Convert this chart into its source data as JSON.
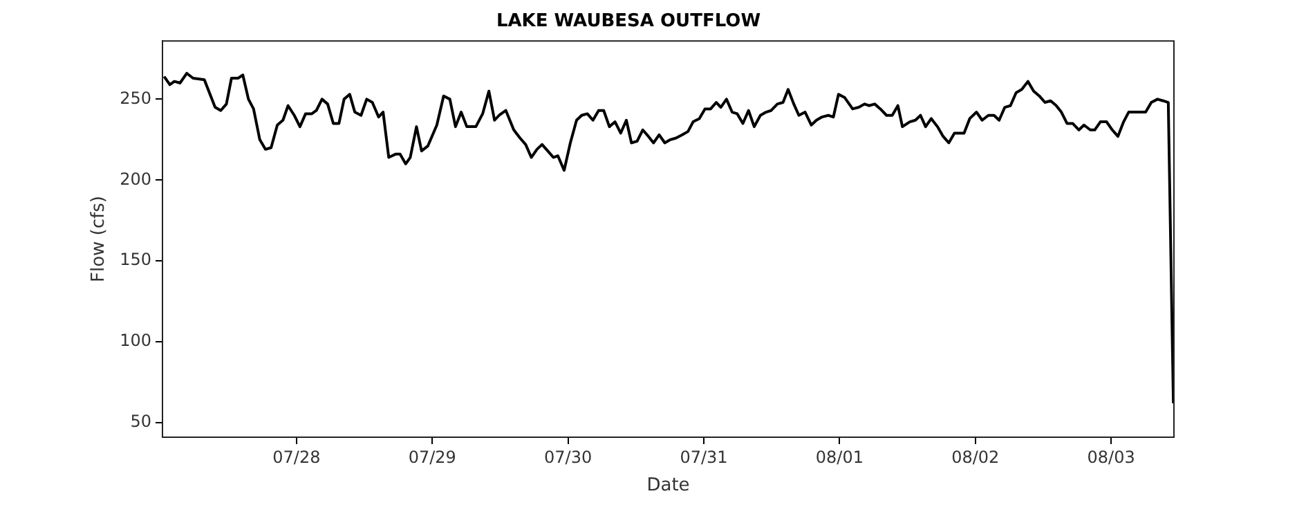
{
  "chart_data": {
    "type": "line",
    "title": "LAKE WAUBESA OUTFLOW",
    "xlabel": "Date",
    "ylabel": "Flow (cfs)",
    "xlim": [
      "--07-27T00:18",
      "--08-03T11:06"
    ],
    "xticks": [
      {
        "value": "--07-28",
        "label": "07/28"
      },
      {
        "value": "--07-29",
        "label": "07/29"
      },
      {
        "value": "--07-30",
        "label": "07/30"
      },
      {
        "value": "--07-31",
        "label": "07/31"
      },
      {
        "value": "--08-01",
        "label": "08/01"
      },
      {
        "value": "--08-02",
        "label": "08/02"
      },
      {
        "value": "--08-03",
        "label": "08/03"
      }
    ],
    "ylim": [
      41,
      286
    ],
    "yticks": [
      50,
      100,
      150,
      200,
      250
    ],
    "grid": false,
    "legend": false,
    "marker": "none",
    "line_style": "solid",
    "series": [
      {
        "color": "#000000",
        "x": [
          "--07-27T00:36",
          "--07-27T01:36",
          "--07-27T02:24",
          "--07-27T03:24",
          "--07-27T04:36",
          "--07-27T05:42",
          "--07-27T07:42",
          "--07-27T09:36",
          "--07-27T10:36",
          "--07-27T11:36",
          "--07-27T12:30",
          "--07-27T13:42",
          "--07-27T14:30",
          "--07-27T15:30",
          "--07-27T16:24",
          "--07-27T17:30",
          "--07-27T18:30",
          "--07-27T19:30",
          "--07-27T20:36",
          "--07-27T21:36",
          "--07-27T22:30",
          "--07-27T23:36",
          "--07-28T00:36",
          "--07-28T01:36",
          "--07-28T02:42",
          "--07-28T03:30",
          "--07-28T04:30",
          "--07-28T05:30",
          "--07-28T06:30",
          "--07-28T07:30",
          "--07-28T08:24",
          "--07-28T09:24",
          "--07-28T10:18",
          "--07-28T11:24",
          "--07-28T12:24",
          "--07-28T13:24",
          "--07-28T14:30",
          "--07-28T15:18",
          "--07-28T16:18",
          "--07-28T17:30",
          "--07-28T18:18",
          "--07-28T19:18",
          "--07-28T20:06",
          "--07-28T21:12",
          "--07-28T22:06",
          "--07-28T23:12",
          "--07-29T00:48",
          "--07-29T02:00",
          "--07-29T03:06",
          "--07-29T04:06",
          "--07-29T05:06",
          "--07-29T06:06",
          "--07-29T07:42",
          "--07-29T08:54",
          "--07-29T10:00",
          "--07-29T11:00",
          "--07-29T11:48",
          "--07-29T13:00",
          "--07-29T14:24",
          "--07-29T15:30",
          "--07-29T16:30",
          "--07-29T17:30",
          "--07-29T18:30",
          "--07-29T19:24",
          "--07-29T20:24",
          "--07-29T21:24",
          "--07-29T22:12",
          "--07-29T23:18",
          "--07-30T00:24",
          "--07-30T01:30",
          "--07-30T02:24",
          "--07-30T03:24",
          "--07-30T04:24",
          "--07-30T05:24",
          "--07-30T06:18",
          "--07-30T07:18",
          "--07-30T08:18",
          "--07-30T09:18",
          "--07-30T10:18",
          "--07-30T11:12",
          "--07-30T12:12",
          "--07-30T13:12",
          "--07-30T14:12",
          "--07-30T15:06",
          "--07-30T16:06",
          "--07-30T17:06",
          "--07-30T18:06",
          "--07-30T19:06",
          "--07-30T20:12",
          "--07-30T21:12",
          "--07-30T22:06",
          "--07-30T23:12",
          "--07-31T00:12",
          "--07-31T01:12",
          "--07-31T02:12",
          "--07-31T03:00",
          "--07-31T04:00",
          "--07-31T05:00",
          "--07-31T05:54",
          "--07-31T06:54",
          "--07-31T07:54",
          "--07-31T08:54",
          "--07-31T10:00",
          "--07-31T11:00",
          "--07-31T11:54",
          "--07-31T13:00",
          "--07-31T14:00",
          "--07-31T14:54",
          "--07-31T15:54",
          "--07-31T16:48",
          "--07-31T17:54",
          "--07-31T19:00",
          "--07-31T19:54",
          "--07-31T20:54",
          "--07-31T22:00",
          "--07-31T22:54",
          "--07-31T23:48",
          "--08-01T00:54",
          "--08-01T02:18",
          "--08-01T03:24",
          "--08-01T04:24",
          "--08-01T05:12",
          "--08-01T06:12",
          "--08-01T07:12",
          "--08-01T08:18",
          "--08-01T09:18",
          "--08-01T10:18",
          "--08-01T11:06",
          "--08-01T12:24",
          "--08-01T13:24",
          "--08-01T14:18",
          "--08-01T15:12",
          "--08-01T16:12",
          "--08-01T17:18",
          "--08-01T18:18",
          "--08-01T19:18",
          "--08-01T20:18",
          "--08-01T22:00",
          "--08-01T23:00",
          "--08-02T00:12",
          "--08-02T01:12",
          "--08-02T02:18",
          "--08-02T03:18",
          "--08-02T04:12",
          "--08-02T05:12",
          "--08-02T06:12",
          "--08-02T07:12",
          "--08-02T08:12",
          "--08-02T09:18",
          "--08-02T10:18",
          "--08-02T11:18",
          "--08-02T12:18",
          "--08-02T13:18",
          "--08-02T14:18",
          "--08-02T15:12",
          "--08-02T16:12",
          "--08-02T17:12",
          "--08-02T18:18",
          "--08-02T19:12",
          "--08-02T20:18",
          "--08-02T21:06",
          "--08-02T22:06",
          "--08-02T23:12",
          "--08-03T00:12",
          "--08-03T01:12",
          "--08-03T02:12",
          "--08-03T03:06",
          "--08-03T04:06",
          "--08-03T06:06",
          "--08-03T07:06",
          "--08-03T08:12",
          "--08-03T09:12",
          "--08-03T10:06",
          "--08-03T11:00"
        ],
        "values": [
          264,
          259,
          261,
          260,
          266,
          263,
          262,
          245,
          243,
          247,
          263,
          263,
          265,
          250,
          244,
          225,
          219,
          220,
          234,
          237,
          246,
          240,
          233,
          241,
          241,
          243,
          250,
          247,
          235,
          235,
          250,
          253,
          242,
          240,
          250,
          248,
          239,
          242,
          214,
          216,
          216,
          210,
          214,
          233,
          218,
          221,
          234,
          252,
          250,
          233,
          242,
          233,
          233,
          241,
          255,
          237,
          240,
          243,
          231,
          226,
          222,
          214,
          219,
          222,
          218,
          214,
          215,
          206,
          223,
          237,
          240,
          241,
          237,
          243,
          243,
          233,
          236,
          229,
          237,
          223,
          224,
          231,
          227,
          223,
          228,
          223,
          225,
          226,
          228,
          230,
          236,
          238,
          244,
          244,
          248,
          245,
          250,
          242,
          241,
          235,
          243,
          233,
          240,
          242,
          243,
          247,
          248,
          256,
          247,
          240,
          242,
          234,
          237,
          239,
          240,
          239,
          253,
          251,
          244,
          245,
          247,
          246,
          247,
          244,
          240,
          240,
          246,
          233,
          236,
          237,
          240,
          233,
          238,
          233,
          227,
          223,
          229,
          229,
          238,
          242,
          237,
          240,
          240,
          237,
          245,
          246,
          254,
          256,
          261,
          255,
          252,
          248,
          249,
          246,
          242,
          235,
          235,
          231,
          234,
          231,
          231,
          236,
          236,
          231,
          227,
          236,
          242,
          242,
          242,
          248,
          250,
          249,
          248,
          62
        ]
      }
    ]
  }
}
